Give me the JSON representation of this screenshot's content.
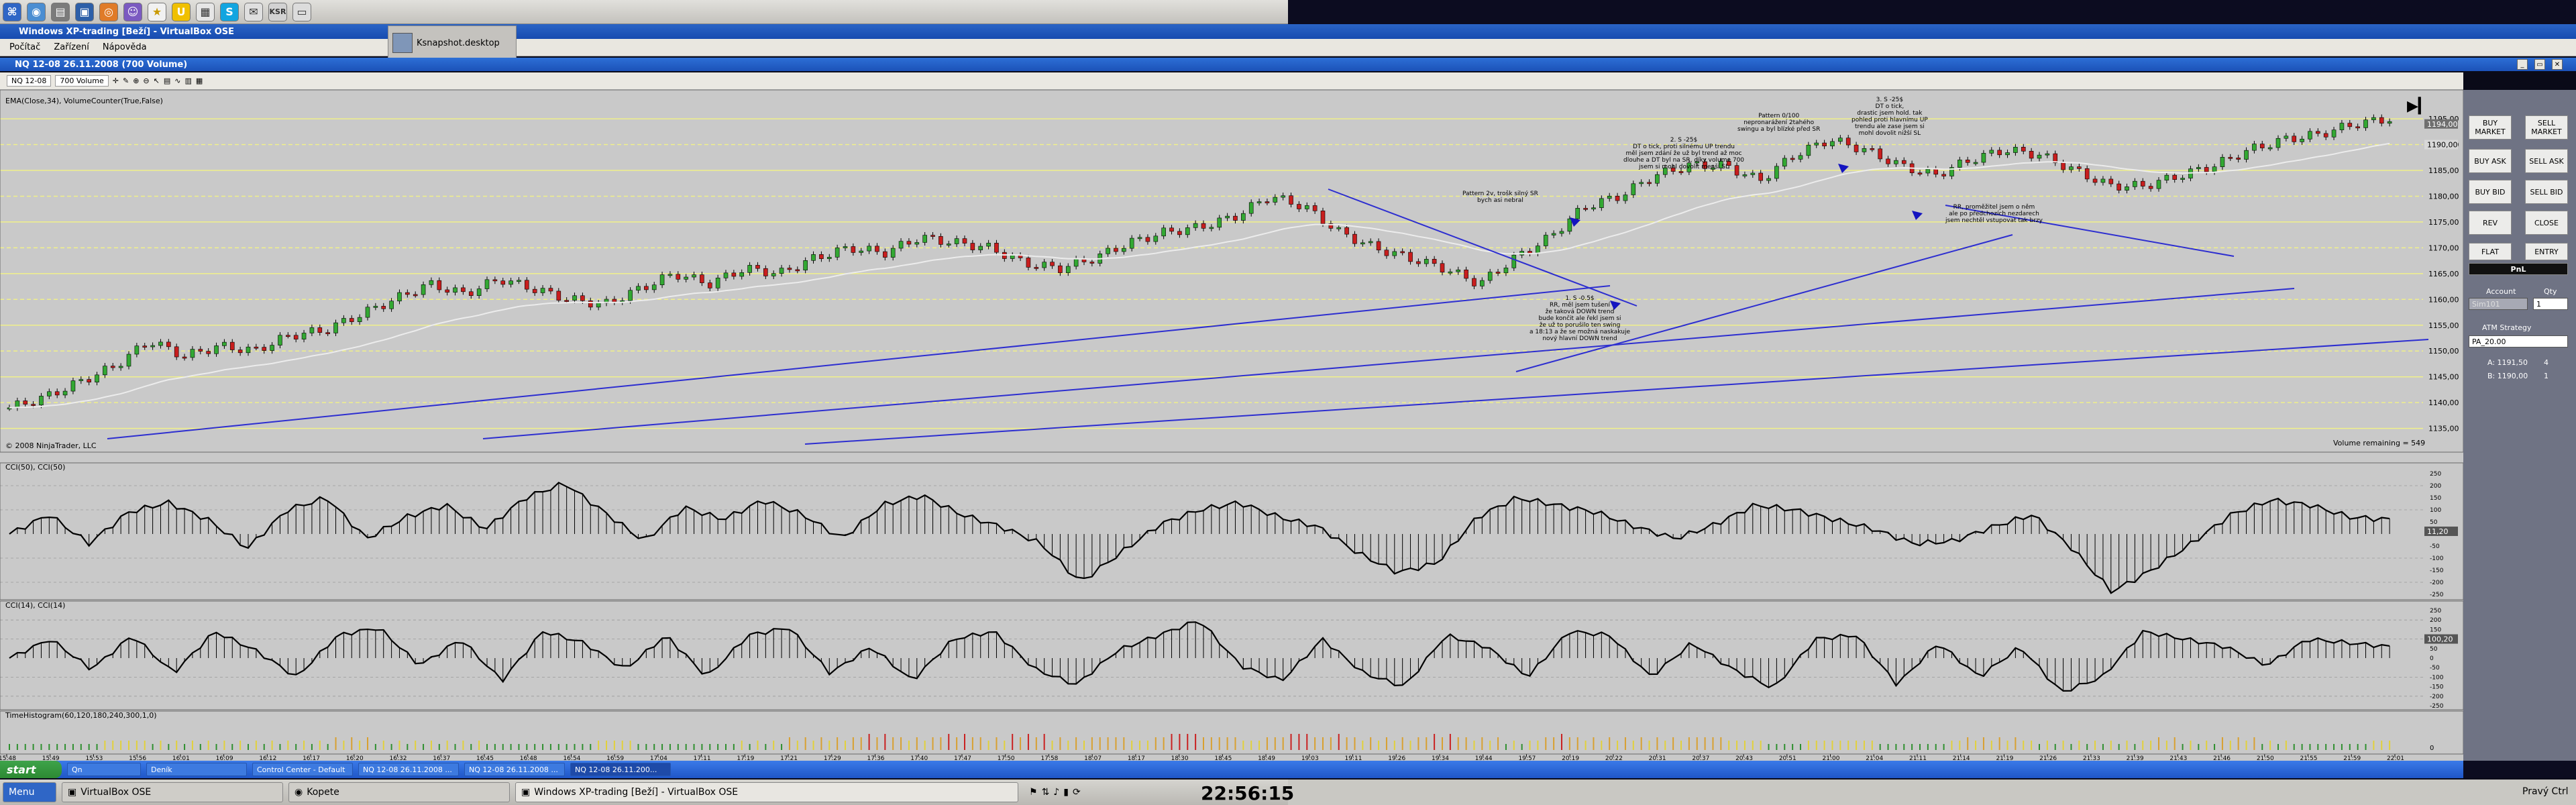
{
  "host": {
    "snapshot_label": "Ksnapshot.desktop",
    "bottom_menu": "Menu",
    "tasks": [
      {
        "label": "VirtualBox OSE"
      },
      {
        "label": "Kopete"
      },
      {
        "label": "Windows XP-trading [Beží] - VirtualBox OSE"
      }
    ],
    "clock": "22:56:15",
    "keyboard": "Pravý Ctrl",
    "top_icons": [
      "menu",
      "browser",
      "files",
      "vbox",
      "firefox",
      "pidgin",
      "star",
      "usb",
      "doc",
      "skype",
      "mail",
      "ksr"
    ]
  },
  "window": {
    "title": "Windows XP-trading [Beží] - VirtualBox OSE",
    "menu": [
      "Počítač",
      "Zařízení",
      "Nápověda"
    ]
  },
  "chart_window": {
    "title": "NQ 12-08 26.11.2008 (700 Volume)",
    "instrument": "NQ 12-08",
    "interval": "700 Volume",
    "indicator_label": "EMA(Close,34), VolumeCounter(True,False)",
    "copyright": "© 2008 NinjaTrader, LLC",
    "volume_remaining": "Volume remaining = 549",
    "cci1_label": "CCI(50), CCI(50)",
    "cci2_label": "CCI(14), CCI(14)",
    "timehist_label": "TimeHistogram(60,120,180,240,300,1,0)"
  },
  "chart_data": {
    "type": "line",
    "price_axis": [
      "1195,00",
      "1190,00",
      "1185,00",
      "1180,00",
      "1175,00",
      "1170,00",
      "1165,00",
      "1160,00",
      "1155,00",
      "1150,00",
      "1145,00",
      "1140,00",
      "1135,00"
    ],
    "price_highlight": [
      "1194,00",
      "1190,00"
    ],
    "cci_axis": [
      "250",
      "200",
      "150",
      "100",
      "50",
      "0",
      "-50",
      "-100",
      "-150",
      "-200",
      "-250"
    ],
    "cci1_value": "11,20",
    "cci2_value": "100,20",
    "hist_value": "0",
    "time_axis": [
      "15:48",
      "15:49",
      "15:53",
      "15:56",
      "16:01",
      "16:09",
      "16:12",
      "16:17",
      "16:20",
      "16:32",
      "16:37",
      "16:45",
      "16:48",
      "16:54",
      "16:59",
      "17:04",
      "17:11",
      "17:19",
      "17:21",
      "17:29",
      "17:36",
      "17:40",
      "17:47",
      "17:50",
      "17:58",
      "18:07",
      "18:17",
      "18:30",
      "18:45",
      "18:49",
      "19:03",
      "19:11",
      "19:26",
      "19:34",
      "19:44",
      "19:57",
      "20:19",
      "20:22",
      "20:31",
      "20:37",
      "20:43",
      "20:51",
      "21:00",
      "21:04",
      "21:11",
      "21:14",
      "21:19",
      "21:26",
      "21:33",
      "21:39",
      "21:43",
      "21:46",
      "21:50",
      "21:55",
      "21:59",
      "22:01"
    ],
    "price_series": [
      1139,
      1141,
      1144,
      1147,
      1152,
      1149,
      1151,
      1150,
      1153,
      1154,
      1157,
      1160,
      1163,
      1161,
      1164,
      1162,
      1160,
      1159,
      1162,
      1165,
      1163,
      1166,
      1165,
      1168,
      1170,
      1169,
      1172,
      1171,
      1170,
      1167,
      1166,
      1168,
      1171,
      1173,
      1174,
      1176,
      1180,
      1178,
      1173,
      1170,
      1168,
      1166,
      1163,
      1168,
      1172,
      1178,
      1180,
      1184,
      1186,
      1186,
      1183,
      1188,
      1191,
      1189,
      1186,
      1184,
      1187,
      1189,
      1188,
      1185,
      1182,
      1182,
      1184,
      1186,
      1189,
      1191,
      1192,
      1194,
      1195
    ],
    "cci1_series": [
      0,
      80,
      -40,
      90,
      130,
      60,
      -60,
      100,
      150,
      -20,
      70,
      120,
      20,
      150,
      210,
      90,
      -30,
      110,
      60,
      140,
      80,
      -20,
      120,
      160,
      80,
      30,
      -40,
      -200,
      -80,
      40,
      100,
      130,
      70,
      30,
      -80,
      -160,
      -120,
      70,
      150,
      120,
      90,
      30,
      -20,
      40,
      120,
      100,
      60,
      20,
      -40,
      -30,
      30,
      80,
      -60,
      -240,
      -150,
      -40,
      80,
      140,
      120,
      70,
      60
    ],
    "cci2_series": [
      0,
      100,
      -60,
      120,
      -80,
      140,
      40,
      -100,
      120,
      160,
      -40,
      100,
      -120,
      140,
      80,
      -60,
      120,
      -100,
      120,
      160,
      -80,
      60,
      -120,
      100,
      140,
      -60,
      -140,
      40,
      120,
      200,
      -40,
      -120,
      100,
      -80,
      -150,
      120,
      60,
      -100,
      140,
      120,
      -100,
      80,
      -60,
      -160,
      100,
      120,
      -140,
      80,
      -100,
      60,
      -180,
      -100,
      140,
      100,
      60,
      -40,
      100,
      80,
      60
    ],
    "hist_series": [
      1,
      1,
      1,
      2,
      1,
      1,
      1,
      1,
      1,
      2,
      1,
      1,
      1,
      1,
      1,
      1,
      2,
      1,
      1,
      1,
      1,
      2,
      2,
      3,
      2,
      3,
      2,
      3,
      2,
      3,
      2,
      4,
      3,
      2,
      4,
      3,
      2,
      2,
      3,
      2,
      1,
      3,
      2,
      2,
      2,
      3,
      2,
      1,
      2,
      2,
      1,
      1,
      2,
      2,
      1,
      1,
      1,
      2,
      1,
      2,
      1,
      1,
      1,
      2
    ],
    "annotations": [
      "Pattern 2v, trošk silný SR\nbych asi nebral",
      "1. S -0.5$\nRR, měl jsem tušení\nže taková DOWN trend\nbude končit ale řekl jsem si\nže už to porušilo ten swing\na 18:13 a že se možná naskakuje\nnový hlavní DOWN trend",
      "2. S -25$\nDT o tick, proti silnému UP trendu\nměl jsem zdání že už byl trend až moc\ndlouhe a DT byl na SR, díky volume 700\njsem si mohl dovolit menší SL",
      "Pattern 0/100\nnepronarážení 2tahého\nswingu a byl blízké před SR",
      "3. S -25$\nDT o tick,\ndrastic jsem hold. tak\npohled proti hlavnímu UP\ntrendu ale zase jsem si\nmohl dovolit nižší SL",
      "RR, proměžitel jsem o něm\nale po předchozích nezdarech\njsem nechtěl vstupovat tak brzy"
    ]
  },
  "order_panel": {
    "buy_market": "BUY MARKET",
    "sell_market": "SELL MARKET",
    "buy_ask": "BUY ASK",
    "sell_ask": "SELL ASK",
    "buy_bid": "BUY BID",
    "sell_bid": "SELL BID",
    "rev": "REV",
    "close": "CLOSE",
    "flat": "FLAT",
    "entry": "ENTRY",
    "pnl": "PnL",
    "account_label": "Account",
    "qty_label": "Qty",
    "account_value": "Sim101",
    "qty_value": "1",
    "atm_label": "ATM Strategy",
    "atm_value": "PA_20.00",
    "ask_label": "A: 1191,50",
    "ask_size": "4",
    "bid_label": "B: 1190,00",
    "bid_size": "1"
  },
  "xp_taskbar": {
    "start": "start",
    "tasks": [
      "Qn",
      "Deník",
      "Control Center - Default",
      "NQ 12-08 26.11.2008 ...",
      "NQ 12-08 26.11.2008 ...",
      "NQ 12-08 26.11.200..."
    ]
  },
  "colors": {
    "chart_bg": "#c9c9c9",
    "up_candle": "#33a833",
    "down_candle": "#c81e1e",
    "ema": "#ececec",
    "trendline": "#2d2ed0",
    "hline": "#f0f08a"
  }
}
